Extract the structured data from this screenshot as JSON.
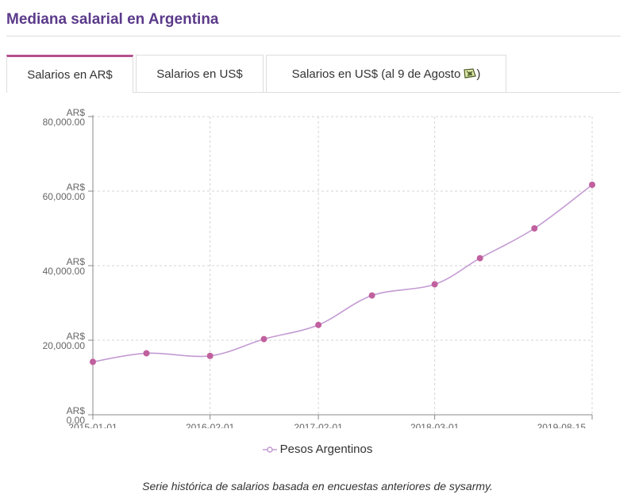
{
  "page": {
    "title": "Mediana salarial en Argentina",
    "caption": "Serie histórica de salarios basada en encuestas anteriores de sysarmy."
  },
  "tabs": [
    {
      "label": "Salarios en AR$",
      "active": true
    },
    {
      "label": "Salarios en US$",
      "active": false
    },
    {
      "label": "Salarios en US$ (al 9 de Agosto",
      "suffix": ")",
      "icon": "money-flag-icon",
      "active": false
    }
  ],
  "colors": {
    "accent": "#b5508f",
    "line": "#c39bd3",
    "point": "#c0609e",
    "title": "#5b3a8a"
  },
  "chart_data": {
    "type": "line",
    "ylim": [
      0,
      80000
    ],
    "xlim": [
      "2015-01-01",
      "2019-08-15"
    ],
    "grid": true,
    "legend_position": "bottom",
    "y_tick_prefix": "AR$",
    "y_ticks": [
      "0.00",
      "20,000.00",
      "40,000.00",
      "60,000.00",
      "80,000.00"
    ],
    "y_tick_values": [
      0,
      20000,
      40000,
      60000,
      80000
    ],
    "x_ticks": [
      {
        "label": "2015-01-01",
        "date": "2015-01-01"
      },
      {
        "label": "2016-02-01",
        "date": "2016-02-01"
      },
      {
        "label": "2017-02-01",
        "date": "2017-02-01"
      },
      {
        "label": "2018-03-01",
        "date": "2018-03-01"
      },
      {
        "label": "2019-08-15",
        "date": "2019-08-15"
      }
    ],
    "series": [
      {
        "name": "Pesos Argentinos",
        "points": [
          {
            "x": "2015-01-01",
            "y": 14200
          },
          {
            "x": "2015-07-01",
            "y": 16500
          },
          {
            "x": "2016-02-01",
            "y": 15800
          },
          {
            "x": "2016-08-01",
            "y": 20300
          },
          {
            "x": "2017-02-01",
            "y": 24100
          },
          {
            "x": "2017-08-01",
            "y": 32000
          },
          {
            "x": "2018-03-01",
            "y": 35000
          },
          {
            "x": "2018-08-01",
            "y": 42000
          },
          {
            "x": "2019-02-01",
            "y": 50000
          },
          {
            "x": "2019-08-15",
            "y": 61700
          }
        ]
      }
    ]
  }
}
